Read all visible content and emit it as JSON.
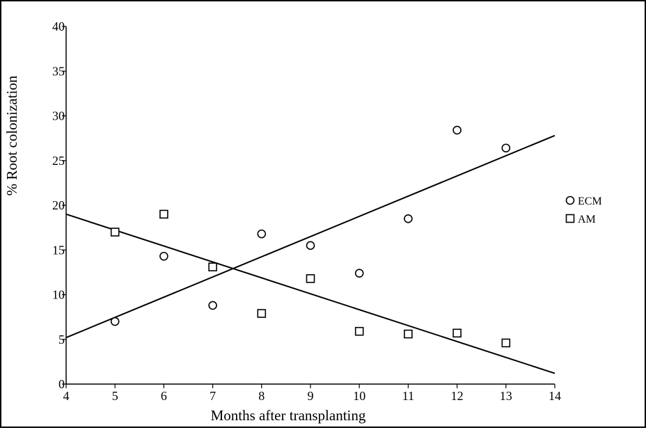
{
  "chart_data": {
    "type": "scatter",
    "xlabel": "Months after transplanting",
    "ylabel": "% Root colonization",
    "xlim": [
      4,
      14
    ],
    "ylim": [
      0,
      40
    ],
    "x_ticks": [
      "4",
      "5",
      "6",
      "7",
      "8",
      "9",
      "10",
      "11",
      "12",
      "13",
      "14"
    ],
    "y_ticks": [
      "0",
      "5",
      "10",
      "15",
      "20",
      "25",
      "30",
      "35",
      "40"
    ],
    "grid": false,
    "legend_position": "right",
    "series": [
      {
        "name": "ECM",
        "marker": "circle",
        "points": [
          {
            "x": 5,
            "y": 7.0
          },
          {
            "x": 6,
            "y": 14.3
          },
          {
            "x": 7,
            "y": 8.8
          },
          {
            "x": 8,
            "y": 16.8
          },
          {
            "x": 9,
            "y": 15.5
          },
          {
            "x": 10,
            "y": 12.4
          },
          {
            "x": 11,
            "y": 18.5
          },
          {
            "x": 12,
            "y": 28.4
          },
          {
            "x": 13,
            "y": 26.4
          }
        ],
        "fit_line": {
          "x": [
            4,
            14
          ],
          "y": [
            5.2,
            27.8
          ]
        }
      },
      {
        "name": "AM",
        "marker": "square",
        "points": [
          {
            "x": 5,
            "y": 17.0
          },
          {
            "x": 6,
            "y": 19.0
          },
          {
            "x": 7,
            "y": 13.1
          },
          {
            "x": 8,
            "y": 7.9
          },
          {
            "x": 9,
            "y": 11.8
          },
          {
            "x": 10,
            "y": 5.9
          },
          {
            "x": 11,
            "y": 5.6
          },
          {
            "x": 12,
            "y": 5.7
          },
          {
            "x": 13,
            "y": 4.6
          }
        ],
        "fit_line": {
          "x": [
            4,
            14
          ],
          "y": [
            19.0,
            1.2
          ]
        }
      }
    ]
  }
}
